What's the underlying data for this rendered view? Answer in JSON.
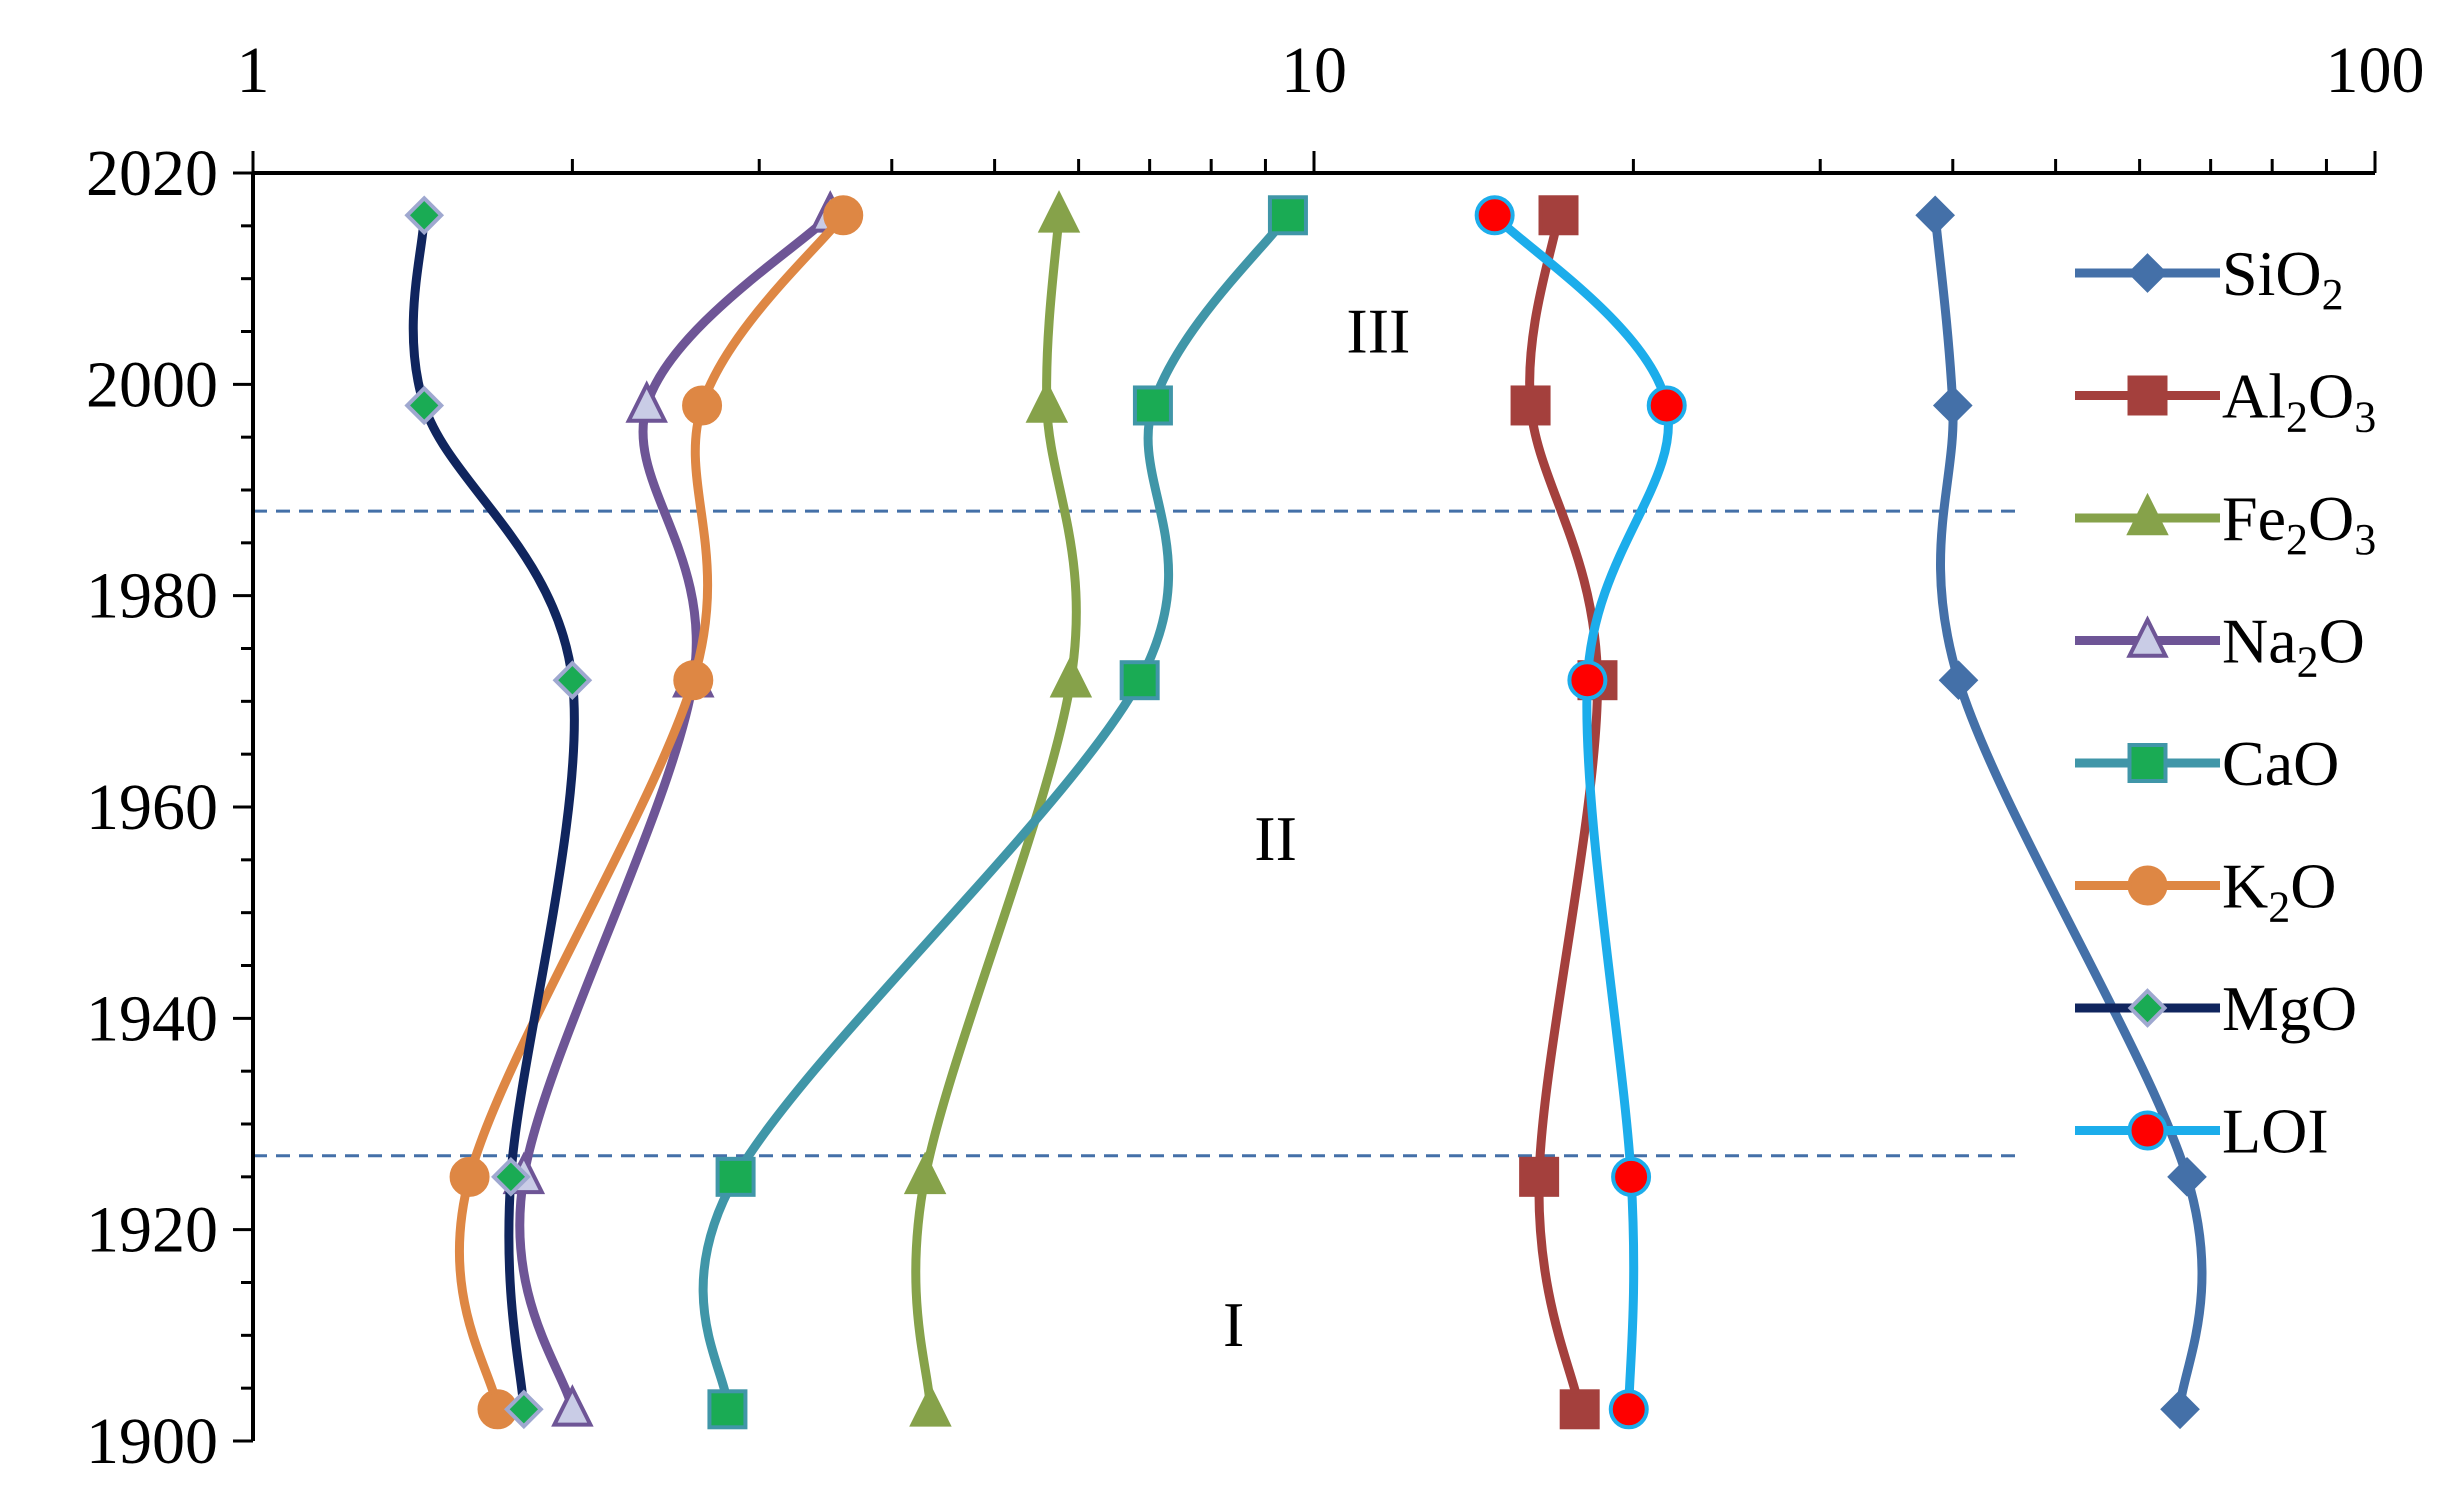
{
  "chart_data": {
    "type": "line",
    "title": "",
    "xlabel": "",
    "ylabel": "",
    "x_scale": "log",
    "xlim": [
      1,
      100
    ],
    "ylim": [
      1900,
      2020
    ],
    "x_axis_position": "top",
    "y_reversed": false,
    "grid": false,
    "legend_position": "right",
    "x_tick_labels": [
      "1",
      "10",
      "100"
    ],
    "x_tick_values": [
      1,
      10,
      100
    ],
    "y_tick_labels": [
      "1900",
      "1920",
      "1940",
      "1960",
      "1980",
      "2000",
      "2020"
    ],
    "y_tick_values": [
      1900,
      1920,
      1940,
      1960,
      1980,
      2000,
      2020
    ],
    "y": [
      1903,
      1925,
      1972,
      1998,
      2016
    ],
    "series": [
      {
        "name": "SiO2",
        "label_main": "SiO",
        "label_sub": "2",
        "label_after": "",
        "color": "#4470A8",
        "marker": "diamond",
        "marker_fill": "#4470A8",
        "marker_edge": "#4470A8",
        "values": [
          65.5,
          66.5,
          40.5,
          40.0,
          38.5
        ]
      },
      {
        "name": "Al2O3",
        "label_main": "Al",
        "label_sub": "2",
        "label_after": "O",
        "label_sub2": "3",
        "color": "#A4403D",
        "marker": "square",
        "marker_fill": "#A4403D",
        "marker_edge": "#A4403D",
        "values": [
          17.8,
          16.3,
          18.5,
          16.0,
          17.0
        ]
      },
      {
        "name": "Fe2O3",
        "label_main": "Fe",
        "label_sub": "2",
        "label_after": "O",
        "label_sub2": "3",
        "color": "#86A24A",
        "marker": "triangle",
        "marker_fill": "#86A24A",
        "marker_edge": "#86A24A",
        "values": [
          4.35,
          4.3,
          5.9,
          5.6,
          5.75
        ]
      },
      {
        "name": "Na2O",
        "label_main": "Na",
        "label_sub": "2",
        "label_after": "O",
        "color": "#6E5596",
        "marker": "triangle",
        "marker_fill": "#C9CCE6",
        "marker_edge": "#6E5596",
        "values": [
          2.0,
          1.8,
          2.6,
          2.35,
          3.5
        ]
      },
      {
        "name": "CaO",
        "label_main": "CaO",
        "label_sub": "",
        "label_after": "",
        "color": "#4096A8",
        "marker": "square",
        "marker_fill": "#1AAB54",
        "marker_edge": "#4096A8",
        "values": [
          2.8,
          2.85,
          6.85,
          7.05,
          9.45
        ]
      },
      {
        "name": "K2O",
        "label_main": " K",
        "label_sub": "2",
        "label_after": "O",
        "color": "#DE8744",
        "marker": "circle",
        "marker_fill": "#DE8744",
        "marker_edge": "#DE8744",
        "values": [
          1.7,
          1.6,
          2.6,
          2.65,
          3.6
        ]
      },
      {
        "name": "MgO",
        "label_main": "MgO",
        "label_sub": "",
        "label_after": "",
        "color": "#10255E",
        "marker": "diamond",
        "marker_fill": "#1AAB54",
        "marker_edge": "#9FA8D0",
        "values": [
          1.8,
          1.75,
          2.0,
          1.45,
          1.45
        ]
      },
      {
        "name": "LOI",
        "label_main": "LOI",
        "label_sub": "",
        "label_after": "",
        "color": "#1CADEB",
        "marker": "circle",
        "marker_fill": "#FF0000",
        "marker_edge": "#1CADEB",
        "values": [
          19.8,
          19.9,
          18.1,
          21.5,
          14.8
        ]
      }
    ],
    "reference_lines": [
      {
        "y": 1988,
        "style": "dashed",
        "color": "#4470A8"
      },
      {
        "y": 1927,
        "style": "dashed",
        "color": "#4470A8"
      }
    ],
    "annotations": [
      {
        "text": "III",
        "x": 11.5,
        "y": 2003
      },
      {
        "text": "II",
        "x": 9.2,
        "y": 1955
      },
      {
        "text": "I",
        "x": 8.4,
        "y": 1909
      }
    ]
  }
}
